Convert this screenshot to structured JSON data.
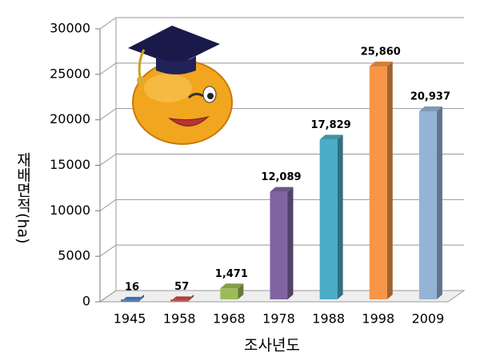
{
  "chart_data": {
    "type": "bar3d",
    "x_label": "조사년도",
    "y_label": "재배면적(ha)",
    "categories": [
      "1945",
      "1958",
      "1968",
      "1978",
      "1988",
      "1998",
      "2009"
    ],
    "values": [
      16,
      57,
      1471,
      12089,
      17829,
      25860,
      20937
    ],
    "value_labels": [
      "16",
      "57",
      "1,471",
      "12,089",
      "17,829",
      "25,860",
      "20,937"
    ],
    "colors": [
      "#4f81bd",
      "#c0504d",
      "#9bbb59",
      "#8064a2",
      "#4bacc6",
      "#f79646",
      "#95b3d7"
    ],
    "ylim": [
      0,
      30000
    ],
    "yticks": [
      0,
      5000,
      10000,
      15000,
      20000,
      25000,
      30000
    ],
    "grid": true
  }
}
